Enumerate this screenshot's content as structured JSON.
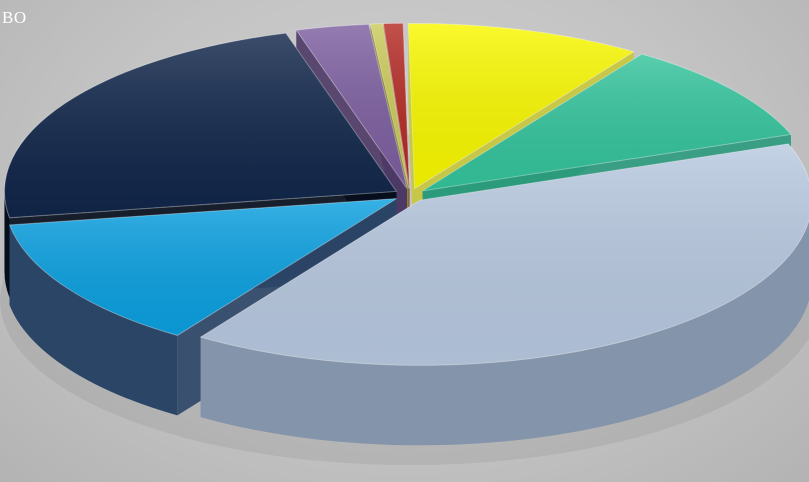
{
  "corner_label": "ВО",
  "chart_data": {
    "type": "pie",
    "title": "",
    "style": "3d-exploded",
    "legend": "none",
    "data_labels": "none",
    "slices": [
      {
        "value": 40.0,
        "color": "#b8c9e0",
        "side_color": "#8494ab"
      },
      {
        "value": 13.0,
        "color": "#0ba0e0",
        "side_color": "#2b4566"
      },
      {
        "value": 23.0,
        "color": "#11264a",
        "side_color": "#060d1c"
      },
      {
        "value": 3.0,
        "color": "#7d5fa0",
        "side_color": "#4c3866"
      },
      {
        "value": 0.5,
        "color": "#c9c95a",
        "side_color": "#8a8a30"
      },
      {
        "value": 0.8,
        "color": "#b42a24",
        "side_color": "#7a1812"
      },
      {
        "value": 9.7,
        "color": "#f8f800",
        "side_color": "#c7c73a"
      },
      {
        "value": 10.0,
        "color": "#34c49c",
        "side_color": "#2a9a7c"
      }
    ]
  }
}
